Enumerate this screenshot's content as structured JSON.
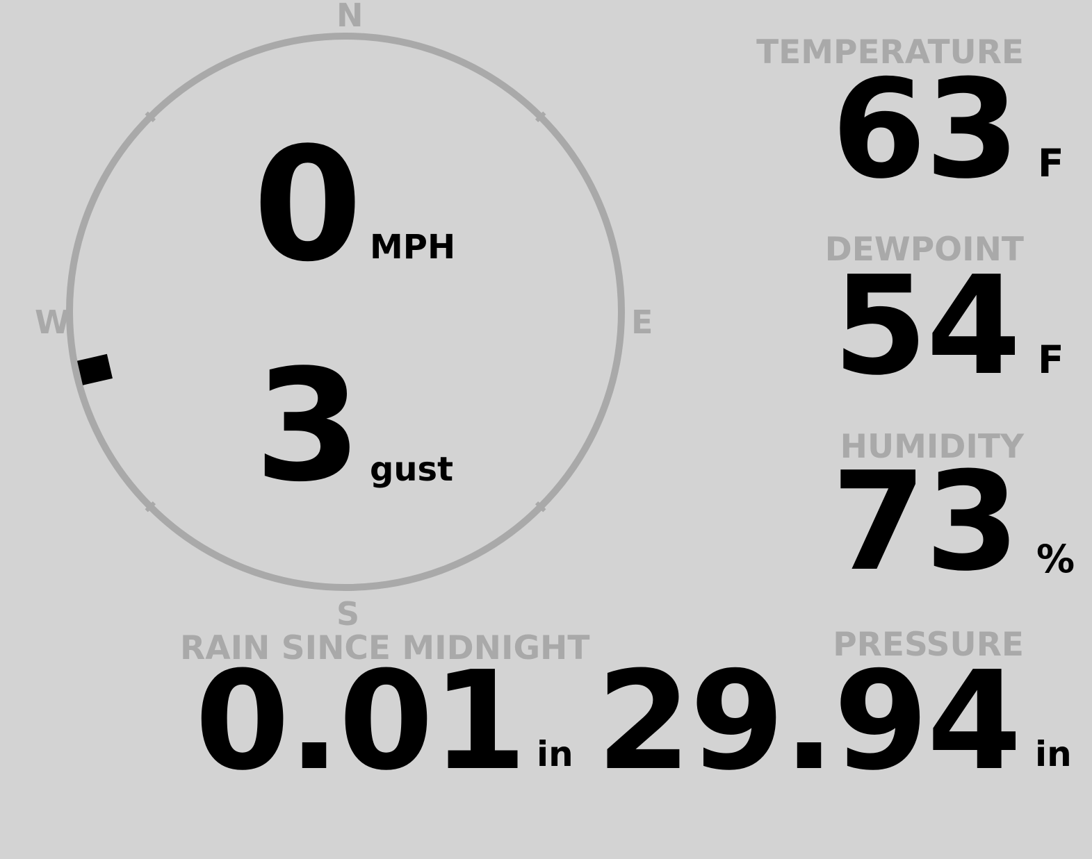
{
  "wind": {
    "speed": "0",
    "speed_unit": "MPH",
    "gust": "3",
    "gust_unit": "gust",
    "direction_degrees": 257,
    "compass": {
      "n": "N",
      "e": "E",
      "s": "S",
      "w": "W"
    }
  },
  "temperature": {
    "label": "TEMPERATURE",
    "value": "63",
    "unit": "F"
  },
  "dewpoint": {
    "label": "DEWPOINT",
    "value": "54",
    "unit": "F"
  },
  "humidity": {
    "label": "HUMIDITY",
    "value": "73",
    "unit": "%"
  },
  "pressure": {
    "label": "PRESSURE",
    "value": "29.94",
    "unit": "in"
  },
  "rain": {
    "label": "RAIN SINCE MIDNIGHT",
    "value": "0.01",
    "unit": "in"
  },
  "colors": {
    "background": "#d3d3d3",
    "dim": "#a9a9a9",
    "text": "#000000"
  }
}
